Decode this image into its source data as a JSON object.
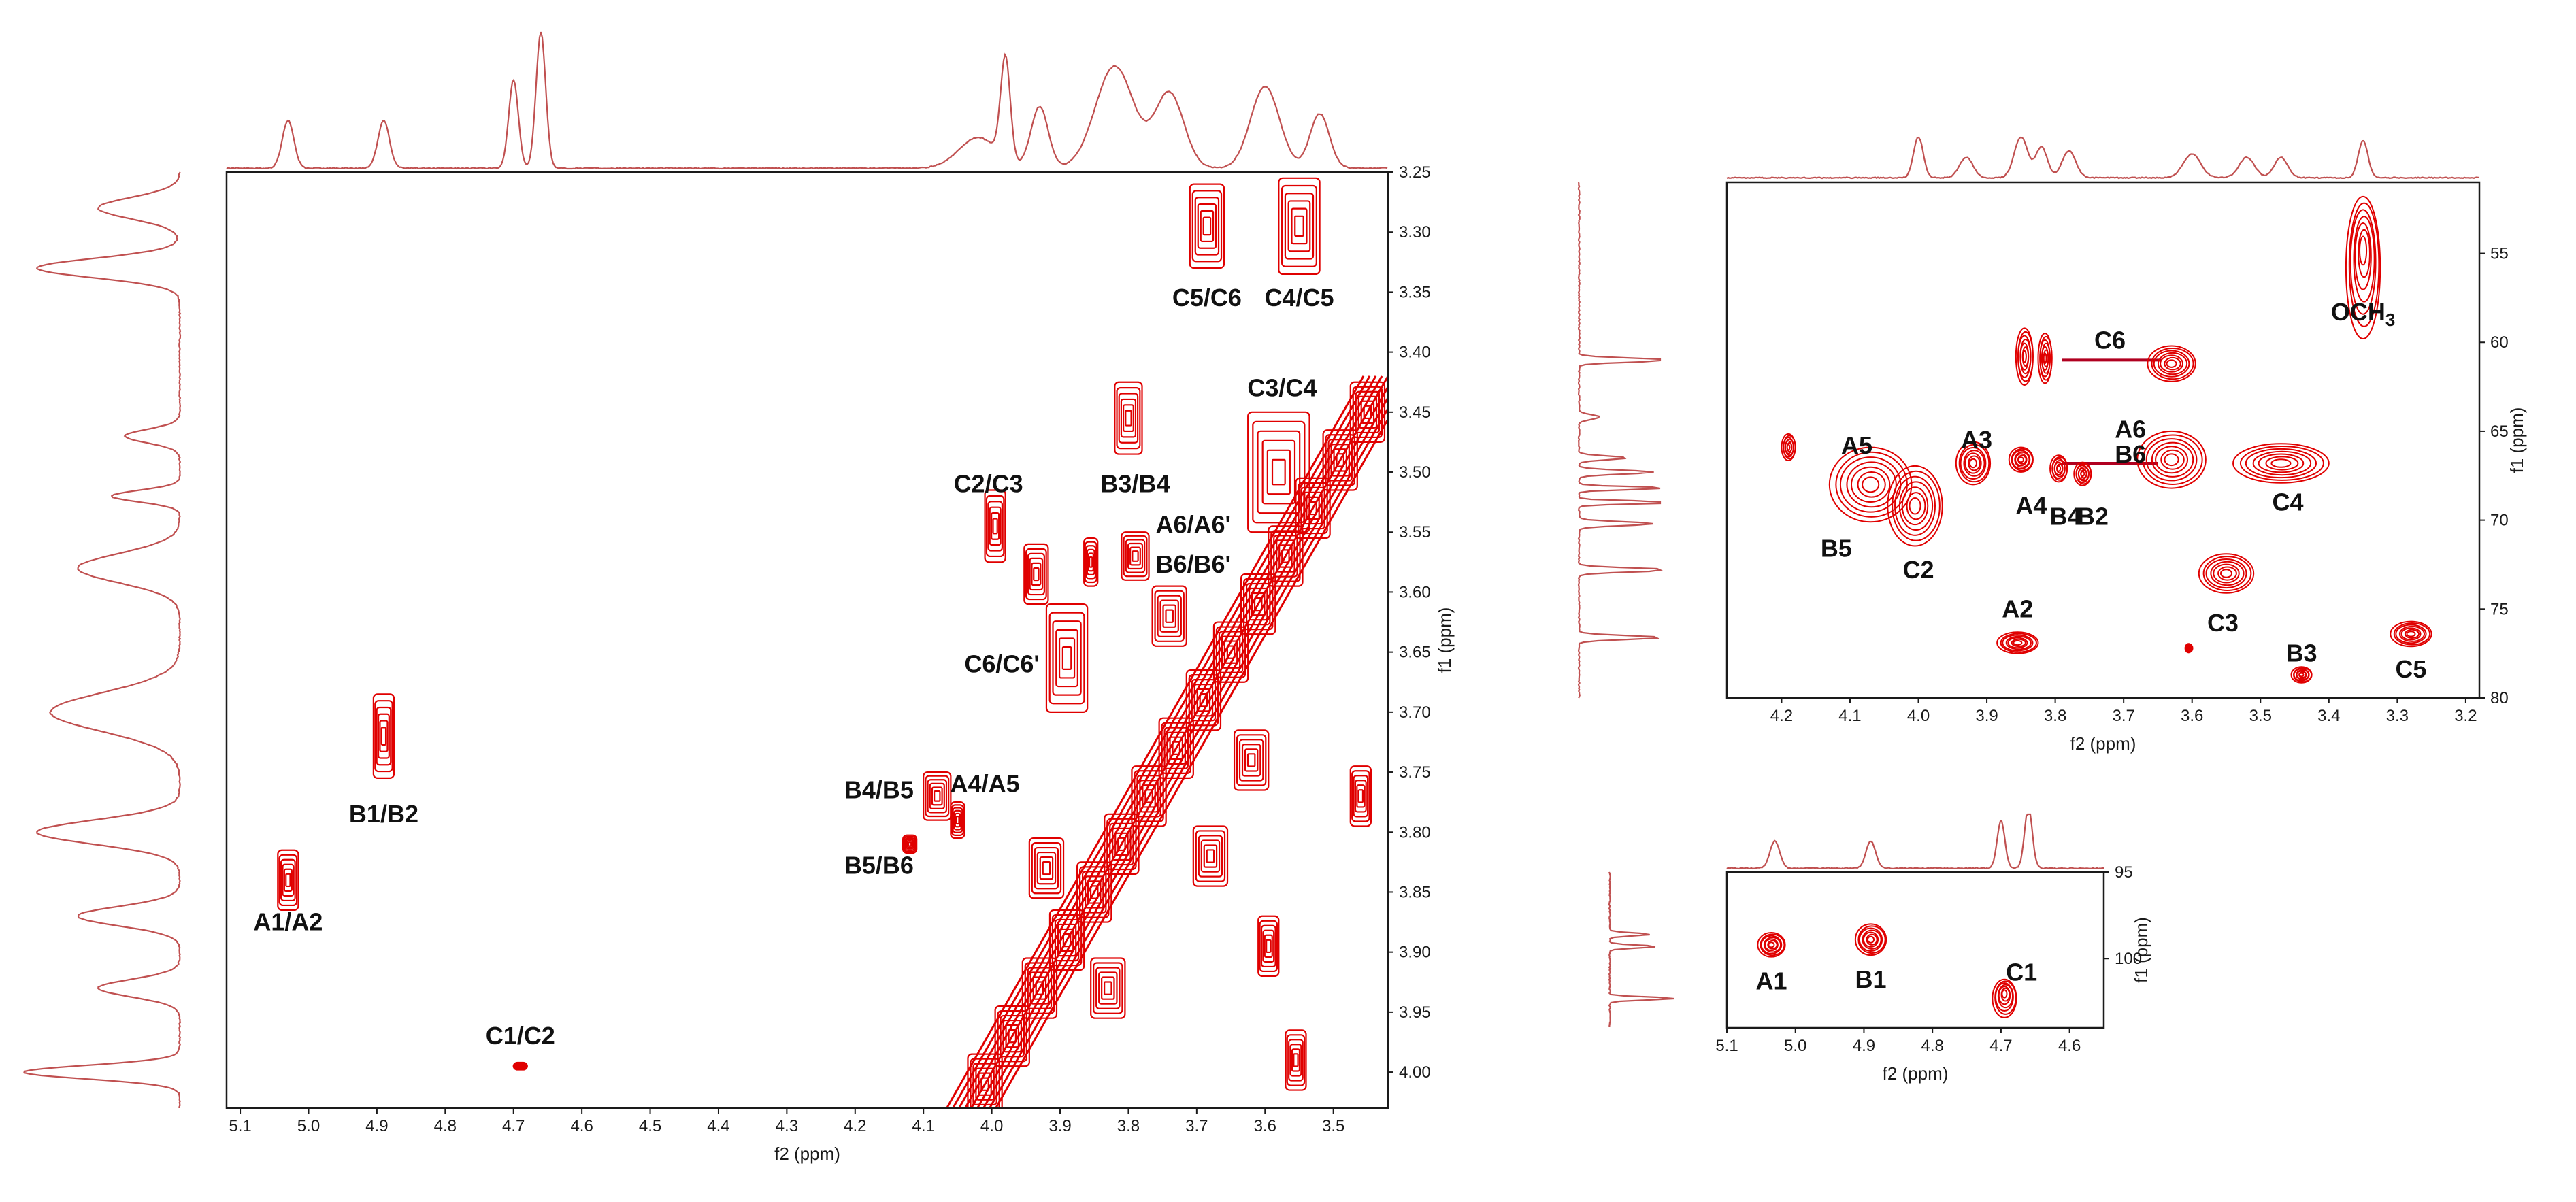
{
  "colors": {
    "contour": "#e00000",
    "projection": "#c05050",
    "frame": "#1a1a1a",
    "text": "#111111"
  },
  "chart_data": [
    {
      "type": "heatmap",
      "id": "cosy",
      "xlabel": "f2 (ppm)",
      "ylabel": "f1 (ppm)",
      "xlim": [
        5.12,
        3.42
      ],
      "ylim": [
        3.25,
        4.03
      ],
      "x_ticks": [
        "5.1",
        "5.0",
        "4.9",
        "4.8",
        "4.7",
        "4.6",
        "4.5",
        "4.4",
        "4.3",
        "4.2",
        "4.1",
        "4.0",
        "3.9",
        "3.8",
        "3.7",
        "3.6",
        "3.5"
      ],
      "y_ticks": [
        "3.25",
        "3.30",
        "3.35",
        "3.40",
        "3.45",
        "3.50",
        "3.55",
        "3.60",
        "3.65",
        "3.70",
        "3.75",
        "3.80",
        "3.85",
        "3.90",
        "3.95",
        "4.00"
      ],
      "peaks": [
        {
          "x": 5.03,
          "y": 3.84,
          "w": 0.03,
          "h": 0.05
        },
        {
          "x": 4.89,
          "y": 3.72,
          "w": 0.03,
          "h": 0.07
        },
        {
          "x": 4.69,
          "y": 3.995,
          "w": 0.02,
          "h": 0.006
        },
        {
          "x": 3.685,
          "y": 3.295,
          "w": 0.05,
          "h": 0.07
        },
        {
          "x": 3.55,
          "y": 3.295,
          "w": 0.06,
          "h": 0.08
        },
        {
          "x": 3.8,
          "y": 3.455,
          "w": 0.04,
          "h": 0.06
        },
        {
          "x": 3.995,
          "y": 3.545,
          "w": 0.03,
          "h": 0.06
        },
        {
          "x": 3.935,
          "y": 3.585,
          "w": 0.035,
          "h": 0.05
        },
        {
          "x": 3.855,
          "y": 3.575,
          "w": 0.02,
          "h": 0.04
        },
        {
          "x": 3.79,
          "y": 3.57,
          "w": 0.04,
          "h": 0.04
        },
        {
          "x": 3.89,
          "y": 3.655,
          "w": 0.06,
          "h": 0.09
        },
        {
          "x": 3.58,
          "y": 3.5,
          "w": 0.09,
          "h": 0.1
        },
        {
          "x": 3.46,
          "y": 3.77,
          "w": 0.03,
          "h": 0.05
        },
        {
          "x": 3.555,
          "y": 3.99,
          "w": 0.03,
          "h": 0.05
        },
        {
          "x": 3.595,
          "y": 3.895,
          "w": 0.03,
          "h": 0.05
        },
        {
          "x": 4.08,
          "y": 3.77,
          "w": 0.04,
          "h": 0.04
        },
        {
          "x": 4.12,
          "y": 3.81,
          "w": 0.02,
          "h": 0.015
        },
        {
          "x": 4.05,
          "y": 3.79,
          "w": 0.02,
          "h": 0.03
        }
      ],
      "diagonal_blocks": [
        {
          "x": 4.01,
          "y": 4.01
        },
        {
          "x": 3.97,
          "y": 3.97
        },
        {
          "x": 3.93,
          "y": 3.93
        },
        {
          "x": 3.89,
          "y": 3.89
        },
        {
          "x": 3.85,
          "y": 3.85
        },
        {
          "x": 3.81,
          "y": 3.81
        },
        {
          "x": 3.77,
          "y": 3.77
        },
        {
          "x": 3.73,
          "y": 3.73
        },
        {
          "x": 3.69,
          "y": 3.69
        },
        {
          "x": 3.65,
          "y": 3.65
        },
        {
          "x": 3.61,
          "y": 3.61
        },
        {
          "x": 3.57,
          "y": 3.57
        },
        {
          "x": 3.53,
          "y": 3.53
        },
        {
          "x": 3.49,
          "y": 3.49
        },
        {
          "x": 3.45,
          "y": 3.45
        },
        {
          "x": 3.68,
          "y": 3.82
        },
        {
          "x": 3.62,
          "y": 3.74
        },
        {
          "x": 3.83,
          "y": 3.93
        },
        {
          "x": 3.92,
          "y": 3.83
        },
        {
          "x": 3.74,
          "y": 3.62
        }
      ],
      "labels": [
        {
          "text": "A1/A2",
          "x": 5.03,
          "y": 3.875
        },
        {
          "text": "B1/B2",
          "x": 4.89,
          "y": 3.785
        },
        {
          "text": "C1/C2",
          "x": 4.69,
          "y": 3.97
        },
        {
          "text": "C5/C6",
          "x": 3.685,
          "y": 3.355
        },
        {
          "text": "C4/C5",
          "x": 3.55,
          "y": 3.355
        },
        {
          "text": "C3/C4",
          "x": 3.575,
          "y": 3.43
        },
        {
          "text": "B3/B4",
          "x": 3.79,
          "y": 3.51
        },
        {
          "text": "C2/C3",
          "x": 4.005,
          "y": 3.51
        },
        {
          "text": "A6/A6'",
          "x": 3.705,
          "y": 3.544
        },
        {
          "text": "B6/B6'",
          "x": 3.705,
          "y": 3.577
        },
        {
          "text": "C6/C6'",
          "x": 3.985,
          "y": 3.66
        },
        {
          "text": "B4/B5",
          "x": 4.165,
          "y": 3.765
        },
        {
          "text": "A4/A5",
          "x": 4.01,
          "y": 3.76
        },
        {
          "text": "B5/B6",
          "x": 4.165,
          "y": 3.828
        }
      ]
    },
    {
      "type": "heatmap",
      "id": "hsqc",
      "xlabel": "f2 (ppm)",
      "ylabel": "f1 (ppm)",
      "xlim": [
        4.28,
        3.18
      ],
      "ylim": [
        51,
        80
      ],
      "x_ticks": [
        "4.2",
        "4.1",
        "4.0",
        "3.9",
        "3.8",
        "3.7",
        "3.6",
        "3.5",
        "3.4",
        "3.3",
        "3.2"
      ],
      "y_ticks": [
        "55",
        "60",
        "65",
        "70",
        "75",
        "80"
      ],
      "peaks": [
        {
          "x": 3.35,
          "y": 55.8,
          "w": 0.05,
          "h": 8
        },
        {
          "x": 3.845,
          "y": 60.8,
          "w": 0.025,
          "h": 3.2
        },
        {
          "x": 3.815,
          "y": 60.9,
          "w": 0.02,
          "h": 2.8
        },
        {
          "x": 3.63,
          "y": 61.2,
          "w": 0.07,
          "h": 2.0
        },
        {
          "x": 4.19,
          "y": 65.9,
          "w": 0.02,
          "h": 1.5
        },
        {
          "x": 4.07,
          "y": 68.0,
          "w": 0.12,
          "h": 4.2
        },
        {
          "x": 4.005,
          "y": 69.2,
          "w": 0.08,
          "h": 4.5
        },
        {
          "x": 3.92,
          "y": 66.8,
          "w": 0.05,
          "h": 2.4
        },
        {
          "x": 3.85,
          "y": 66.6,
          "w": 0.035,
          "h": 1.4
        },
        {
          "x": 3.795,
          "y": 67.1,
          "w": 0.025,
          "h": 1.5
        },
        {
          "x": 3.76,
          "y": 67.4,
          "w": 0.025,
          "h": 1.3
        },
        {
          "x": 3.63,
          "y": 66.6,
          "w": 0.1,
          "h": 3.2
        },
        {
          "x": 3.47,
          "y": 66.8,
          "w": 0.14,
          "h": 2.2
        },
        {
          "x": 3.55,
          "y": 73.0,
          "w": 0.08,
          "h": 2.2
        },
        {
          "x": 3.855,
          "y": 76.9,
          "w": 0.06,
          "h": 1.2
        },
        {
          "x": 3.44,
          "y": 78.7,
          "w": 0.03,
          "h": 0.9
        },
        {
          "x": 3.28,
          "y": 76.4,
          "w": 0.06,
          "h": 1.4
        },
        {
          "x": 3.605,
          "y": 77.2,
          "w": 0.01,
          "h": 0.5
        }
      ],
      "connectors": [
        {
          "x1": 3.79,
          "y1": 61.0,
          "x2": 3.645,
          "y2": 61.0
        },
        {
          "x1": 3.79,
          "y1": 66.8,
          "x2": 3.65,
          "y2": 66.8
        }
      ],
      "labels": [
        {
          "text": "C6",
          "x": 3.72,
          "y": 59.9
        },
        {
          "text": "A6",
          "x": 3.69,
          "y": 64.9
        },
        {
          "text": "B6",
          "x": 3.69,
          "y": 66.3
        },
        {
          "text": "A5",
          "x": 4.09,
          "y": 65.8
        },
        {
          "text": "A3",
          "x": 3.915,
          "y": 65.5
        },
        {
          "text": "A4",
          "x": 3.835,
          "y": 69.2
        },
        {
          "text": "B4",
          "x": 3.785,
          "y": 69.8
        },
        {
          "text": "B2",
          "x": 3.745,
          "y": 69.8
        },
        {
          "text": "C4",
          "x": 3.46,
          "y": 69.0
        },
        {
          "text": "B5",
          "x": 4.12,
          "y": 71.6
        },
        {
          "text": "C2",
          "x": 4.0,
          "y": 72.8
        },
        {
          "text": "C3",
          "x": 3.555,
          "y": 75.8
        },
        {
          "text": "A2",
          "x": 3.855,
          "y": 75.0
        },
        {
          "text": "B3",
          "x": 3.44,
          "y": 77.5
        },
        {
          "text": "C5",
          "x": 3.28,
          "y": 78.4
        },
        {
          "text": "OCH3",
          "x": 3.35,
          "y": 58.3
        }
      ]
    },
    {
      "type": "heatmap",
      "id": "anomeric",
      "xlabel": "f2 (ppm)",
      "ylabel": "f1 (ppm)",
      "xlim": [
        5.1,
        4.55
      ],
      "ylim": [
        95,
        104
      ],
      "x_ticks": [
        "5.1",
        "5.0",
        "4.9",
        "4.8",
        "4.7",
        "4.6"
      ],
      "y_ticks": [
        "95",
        "100"
      ],
      "peaks": [
        {
          "x": 5.035,
          "y": 99.2,
          "w": 0.04,
          "h": 1.4
        },
        {
          "x": 4.89,
          "y": 98.9,
          "w": 0.045,
          "h": 1.8
        },
        {
          "x": 4.695,
          "y": 102.3,
          "w": 0.035,
          "h": 2.2
        }
      ],
      "labels": [
        {
          "text": "A1",
          "x": 5.035,
          "y": 101.3
        },
        {
          "text": "B1",
          "x": 4.89,
          "y": 101.2
        },
        {
          "text": "C1",
          "x": 4.67,
          "y": 100.8
        }
      ]
    }
  ]
}
